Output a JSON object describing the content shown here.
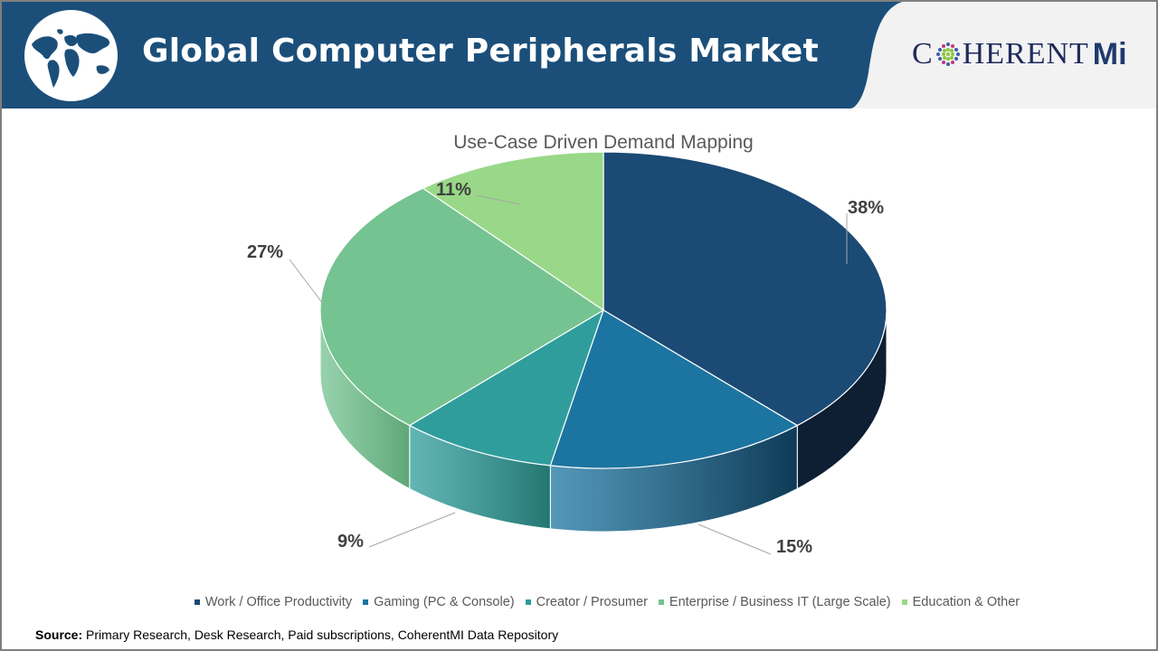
{
  "header": {
    "title": "Global Computer Peripherals Market",
    "logo_text": "C",
    "logo_text_rest": "HERENT",
    "logo_mi": "Mi",
    "bg_color": "#1b4f7a"
  },
  "source": {
    "label": "Source:",
    "text": "Primary Research, Desk Research, Paid subscriptions, CoherentMI Data Repository"
  },
  "chart_data": {
    "type": "pie",
    "title": "Use-Case Driven Demand Mapping",
    "style": "3d",
    "categories": [
      "Work / Office Productivity",
      "Gaming (PC & Console)",
      "Creator / Prosumer",
      "Enterprise / Business IT (Large Scale)",
      "Education & Other"
    ],
    "values": [
      38,
      15,
      9,
      27,
      11
    ],
    "labels": [
      "38%",
      "15%",
      "9%",
      "27%",
      "11%"
    ],
    "colors": [
      "#1b4a74",
      "#1c75a0",
      "#2f9d9c",
      "#75c391",
      "#99d888"
    ],
    "side_colors": [
      "#0e1e33",
      "#0e3a56",
      "#247672",
      "#5ea777",
      "#80bb70"
    ],
    "legend_position": "bottom",
    "start_angle": "12 o'clock, clockwise"
  }
}
